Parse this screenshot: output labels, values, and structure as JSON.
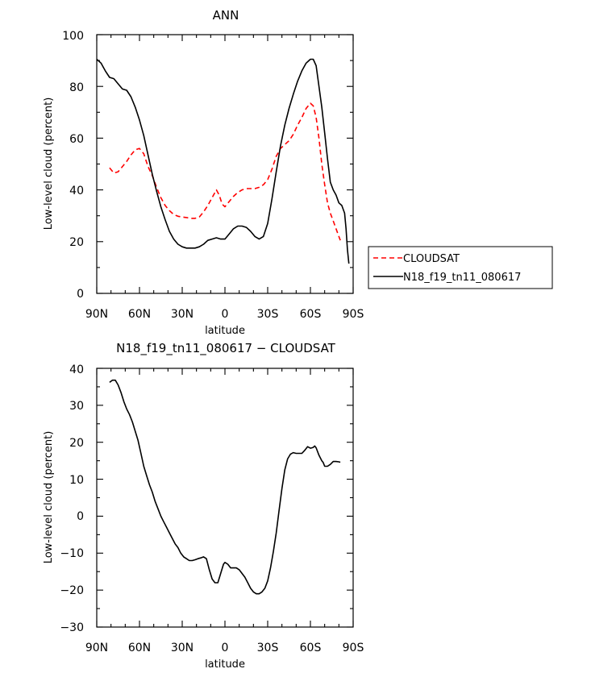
{
  "chart_data": [
    {
      "type": "line",
      "title": "ANN",
      "xlabel": "latitude",
      "ylabel": "Low-level cloud (percent)",
      "xlim": [
        90,
        -90
      ],
      "ylim": [
        0,
        100
      ],
      "x_ticks": [
        90,
        60,
        30,
        0,
        -30,
        -60,
        -90
      ],
      "x_tick_labels": [
        "90N",
        "60N",
        "30N",
        "0",
        "30S",
        "60S",
        "90S"
      ],
      "y_ticks": [
        0,
        20,
        40,
        60,
        80,
        100
      ],
      "y_tick_labels": [
        "0",
        "20",
        "40",
        "60",
        "80",
        "100"
      ],
      "legend_position": "right",
      "series": [
        {
          "name": "CLOUDSAT",
          "color": "#ff0000",
          "dash": "dashed",
          "points": [
            [
              81,
              48.5
            ],
            [
              78,
              46.5
            ],
            [
              75,
              47
            ],
            [
              72,
              49
            ],
            [
              69,
              51
            ],
            [
              66,
              53.5
            ],
            [
              63,
              55.5
            ],
            [
              60,
              56
            ],
            [
              57,
              54
            ],
            [
              54,
              49
            ],
            [
              51,
              45.5
            ],
            [
              48,
              41
            ],
            [
              45,
              37
            ],
            [
              42,
              34
            ],
            [
              39,
              32
            ],
            [
              36,
              30.5
            ],
            [
              33,
              29.8
            ],
            [
              30,
              29.5
            ],
            [
              27,
              29.3
            ],
            [
              24,
              29
            ],
            [
              21,
              29
            ],
            [
              18,
              29.5
            ],
            [
              15,
              31.5
            ],
            [
              12,
              34
            ],
            [
              9,
              37
            ],
            [
              6,
              40
            ],
            [
              4,
              38
            ],
            [
              2,
              34.5
            ],
            [
              0,
              33.5
            ],
            [
              -3,
              35.5
            ],
            [
              -6,
              37.5
            ],
            [
              -9,
              39
            ],
            [
              -12,
              40
            ],
            [
              -15,
              40.5
            ],
            [
              -18,
              40.5
            ],
            [
              -21,
              40.5
            ],
            [
              -24,
              41
            ],
            [
              -27,
              42
            ],
            [
              -30,
              44
            ],
            [
              -33,
              48
            ],
            [
              -36,
              53
            ],
            [
              -39,
              56
            ],
            [
              -42,
              57.5
            ],
            [
              -45,
              59
            ],
            [
              -48,
              61.5
            ],
            [
              -51,
              65
            ],
            [
              -54,
              68
            ],
            [
              -57,
              71.5
            ],
            [
              -60,
              73.5
            ],
            [
              -62,
              72.5
            ],
            [
              -64,
              68
            ],
            [
              -66,
              60
            ],
            [
              -68,
              50
            ],
            [
              -70,
              42
            ],
            [
              -72,
              35
            ],
            [
              -74,
              31
            ],
            [
              -76,
              28
            ],
            [
              -78,
              25
            ],
            [
              -80,
              22
            ],
            [
              -81,
              20.5
            ]
          ]
        },
        {
          "name": "N18_f19_tn11_080617",
          "color": "#000000",
          "dash": "solid",
          "points": [
            [
              90,
              90.5
            ],
            [
              87,
              89
            ],
            [
              84,
              86
            ],
            [
              81,
              83.5
            ],
            [
              78,
              83
            ],
            [
              75,
              81
            ],
            [
              72,
              79
            ],
            [
              69,
              78.5
            ],
            [
              66,
              76
            ],
            [
              63,
              72
            ],
            [
              60,
              67
            ],
            [
              57,
              61
            ],
            [
              54,
              53.5
            ],
            [
              51,
              46
            ],
            [
              48,
              39.5
            ],
            [
              45,
              33.5
            ],
            [
              42,
              28.5
            ],
            [
              39,
              24
            ],
            [
              36,
              21
            ],
            [
              33,
              19
            ],
            [
              30,
              18
            ],
            [
              27,
              17.5
            ],
            [
              24,
              17.5
            ],
            [
              21,
              17.5
            ],
            [
              18,
              18
            ],
            [
              15,
              19
            ],
            [
              12,
              20.5
            ],
            [
              9,
              21
            ],
            [
              6,
              21.5
            ],
            [
              3,
              21
            ],
            [
              0,
              21
            ],
            [
              -3,
              23
            ],
            [
              -6,
              25
            ],
            [
              -9,
              26
            ],
            [
              -12,
              26
            ],
            [
              -15,
              25.5
            ],
            [
              -18,
              24
            ],
            [
              -21,
              22
            ],
            [
              -24,
              21
            ],
            [
              -27,
              22
            ],
            [
              -30,
              27
            ],
            [
              -33,
              36.5
            ],
            [
              -36,
              47
            ],
            [
              -39,
              57
            ],
            [
              -42,
              65
            ],
            [
              -45,
              71.5
            ],
            [
              -48,
              77
            ],
            [
              -51,
              82
            ],
            [
              -54,
              86
            ],
            [
              -57,
              89
            ],
            [
              -60,
              90.5
            ],
            [
              -62,
              90.5
            ],
            [
              -64,
              88
            ],
            [
              -66,
              80
            ],
            [
              -68,
              72
            ],
            [
              -70,
              62
            ],
            [
              -72,
              52
            ],
            [
              -74,
              43
            ],
            [
              -76,
              40
            ],
            [
              -78,
              38
            ],
            [
              -80,
              35
            ],
            [
              -82,
              34
            ],
            [
              -84,
              31
            ],
            [
              -85,
              25
            ],
            [
              -86,
              17
            ],
            [
              -87,
              11.5
            ]
          ]
        }
      ]
    },
    {
      "type": "line",
      "title": "N18_f19_tn11_080617 - CLOUDSAT",
      "xlabel": "latitude",
      "ylabel": "Low-level cloud (percent)",
      "xlim": [
        90,
        -90
      ],
      "ylim": [
        -30,
        40
      ],
      "x_ticks": [
        90,
        60,
        30,
        0,
        -30,
        -60,
        -90
      ],
      "x_tick_labels": [
        "90N",
        "60N",
        "30N",
        "0",
        "30S",
        "60S",
        "90S"
      ],
      "y_ticks": [
        -30,
        -20,
        -10,
        0,
        10,
        20,
        30,
        40
      ],
      "y_tick_labels": [
        "−30",
        "−20",
        "−10",
        "0",
        "10",
        "20",
        "30",
        "40"
      ],
      "series": [
        {
          "name": "N18_f19_tn11_080617 - CLOUDSAT",
          "color": "#000000",
          "dash": "solid",
          "points": [
            [
              81,
              36.2
            ],
            [
              79,
              36.8
            ],
            [
              77,
              36.8
            ],
            [
              75,
              35.5
            ],
            [
              73,
              33.5
            ],
            [
              71,
              31
            ],
            [
              69,
              29
            ],
            [
              67,
              27.5
            ],
            [
              65,
              25.5
            ],
            [
              63,
              23
            ],
            [
              61,
              20.5
            ],
            [
              59,
              17
            ],
            [
              57,
              13.5
            ],
            [
              55,
              11
            ],
            [
              53,
              8.5
            ],
            [
              51,
              6.5
            ],
            [
              49,
              4
            ],
            [
              47,
              2
            ],
            [
              45,
              0
            ],
            [
              43,
              -1.5
            ],
            [
              41,
              -3
            ],
            [
              39,
              -4.5
            ],
            [
              37,
              -6
            ],
            [
              35,
              -7.5
            ],
            [
              33,
              -8.5
            ],
            [
              31,
              -10
            ],
            [
              29,
              -11
            ],
            [
              27,
              -11.5
            ],
            [
              25,
              -12
            ],
            [
              23,
              -12
            ],
            [
              21,
              -11.8
            ],
            [
              19,
              -11.5
            ],
            [
              17,
              -11.3
            ],
            [
              15,
              -11
            ],
            [
              13,
              -11.5
            ],
            [
              11,
              -14.5
            ],
            [
              9,
              -17
            ],
            [
              7,
              -18
            ],
            [
              5,
              -18
            ],
            [
              3,
              -15.5
            ],
            [
              1,
              -13
            ],
            [
              0,
              -12.5
            ],
            [
              -2,
              -13
            ],
            [
              -4,
              -14
            ],
            [
              -6,
              -14
            ],
            [
              -8,
              -14
            ],
            [
              -10,
              -14.5
            ],
            [
              -12,
              -15.5
            ],
            [
              -14,
              -16.5
            ],
            [
              -16,
              -18
            ],
            [
              -18,
              -19.5
            ],
            [
              -20,
              -20.5
            ],
            [
              -22,
              -21
            ],
            [
              -24,
              -21
            ],
            [
              -26,
              -20.5
            ],
            [
              -28,
              -19.5
            ],
            [
              -30,
              -17.5
            ],
            [
              -32,
              -14
            ],
            [
              -34,
              -9.5
            ],
            [
              -36,
              -4.5
            ],
            [
              -38,
              1.5
            ],
            [
              -40,
              7.5
            ],
            [
              -42,
              12.5
            ],
            [
              -44,
              15.5
            ],
            [
              -46,
              16.8
            ],
            [
              -48,
              17.2
            ],
            [
              -50,
              17
            ],
            [
              -52,
              17
            ],
            [
              -54,
              17
            ],
            [
              -56,
              17.8
            ],
            [
              -58,
              18.8
            ],
            [
              -60,
              18.4
            ],
            [
              -62,
              18.6
            ],
            [
              -63,
              19
            ],
            [
              -64,
              18.5
            ],
            [
              -66,
              16.5
            ],
            [
              -68,
              15
            ],
            [
              -69,
              14.5
            ],
            [
              -70,
              13.5
            ],
            [
              -72,
              13.5
            ],
            [
              -74,
              14
            ],
            [
              -76,
              14.8
            ],
            [
              -78,
              14.8
            ],
            [
              -80,
              14.7
            ],
            [
              -81,
              14.6
            ]
          ]
        }
      ]
    }
  ],
  "charts": [
    {
      "title": "ANN",
      "xlabel": "latitude",
      "ylabel": "Low-level cloud (percent)",
      "x_tick_labels": [
        "90N",
        "60N",
        "30N",
        "0",
        "30S",
        "60S",
        "90S"
      ],
      "y_tick_labels": [
        "0",
        "20",
        "40",
        "60",
        "80",
        "100"
      ],
      "legend": [
        {
          "label": "CLOUDSAT"
        },
        {
          "label": "N18_f19_tn11_080617"
        }
      ]
    },
    {
      "title": "N18_f19_tn11_080617 − CLOUDSAT",
      "xlabel": "latitude",
      "ylabel": "Low-level cloud (percent)",
      "x_tick_labels": [
        "90N",
        "60N",
        "30N",
        "0",
        "30S",
        "60S",
        "90S"
      ],
      "y_tick_labels": [
        "−30",
        "−20",
        "−10",
        "0",
        "10",
        "20",
        "30",
        "40"
      ]
    }
  ]
}
